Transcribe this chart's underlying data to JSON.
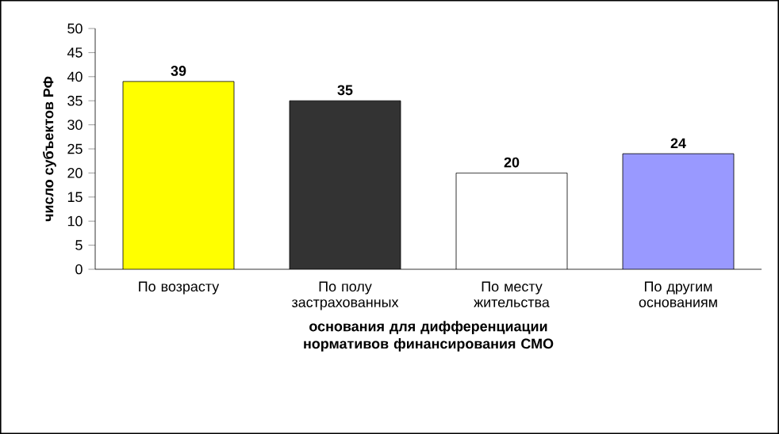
{
  "chart_data": {
    "type": "bar",
    "xlabel": "основания для дифференциации нормативов финансирования СМО",
    "ylabel": "число субъектов РФ",
    "categories": [
      "По возрасту",
      "По полу застрахованных",
      "По месту жительства",
      "По другим основаниям"
    ],
    "values": [
      39,
      35,
      20,
      24
    ],
    "colors": [
      "#ffff00",
      "#333333",
      "#ffffff",
      "#9999ff"
    ],
    "ylim": [
      0,
      50
    ],
    "yticks": [
      0,
      5,
      10,
      15,
      20,
      25,
      30,
      35,
      40,
      45,
      50
    ],
    "data_labels": true,
    "grid": false
  }
}
